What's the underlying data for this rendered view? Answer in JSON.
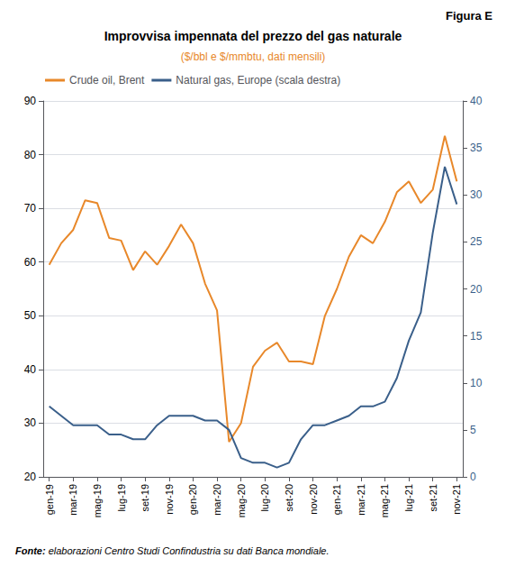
{
  "chart_data": {
    "type": "line",
    "title": "Improvvisa impennata del prezzo del gas naturale",
    "subtitle": "($/bbl e $/mmbtu, dati mensili)",
    "figure_label": "Figura E",
    "source_prefix": "Fonte:",
    "source": "elaborazioni Centro Studi Confindustria su dati Banca mondiale.",
    "subtitle_color": "#E8882A",
    "categories": [
      "gen-19",
      null,
      "mar-19",
      null,
      "mag-19",
      null,
      "lug-19",
      null,
      "set-19",
      null,
      "nov-19",
      null,
      "gen-20",
      null,
      "mar-20",
      null,
      "mag-20",
      null,
      "lug-20",
      null,
      "set-20",
      null,
      "nov-20",
      null,
      "gen-21",
      null,
      "mar-21",
      null,
      "mag-21",
      null,
      "lug-21",
      null,
      "set-21",
      null,
      "nov-21"
    ],
    "series": [
      {
        "name": "Crude oil, Brent",
        "color": "#E8882A",
        "axis": "y",
        "values": [
          59.5,
          63.5,
          66.0,
          71.5,
          71.0,
          64.5,
          64.0,
          58.5,
          62.0,
          59.5,
          63.0,
          67.0,
          63.5,
          56.0,
          51.0,
          26.5,
          30.0,
          40.5,
          43.5,
          45.0,
          41.5,
          41.5,
          41.0,
          50.0,
          55.0,
          61.0,
          65.0,
          63.5,
          67.5,
          73.0,
          75.0,
          71.0,
          73.5,
          83.5,
          75.0
        ]
      },
      {
        "name": "Natural gas, Europe (scala destra)",
        "color": "#3A5F8A",
        "axis": "y2",
        "values": [
          7.5,
          6.5,
          5.5,
          5.5,
          5.5,
          4.5,
          4.5,
          4.0,
          4.0,
          5.5,
          6.5,
          6.5,
          6.5,
          6.0,
          6.0,
          5.0,
          2.0,
          1.5,
          1.5,
          1.0,
          1.5,
          4.0,
          5.5,
          5.5,
          6.0,
          6.5,
          7.5,
          7.5,
          8.0,
          10.5,
          14.5,
          17.5,
          26.0,
          33.0,
          29.0
        ]
      }
    ],
    "ylim": [
      20,
      90
    ],
    "yticks": [
      20,
      30,
      40,
      50,
      60,
      70,
      80,
      90
    ],
    "y2lim": [
      0,
      40
    ],
    "y2ticks": [
      0,
      5,
      10,
      15,
      20,
      25,
      30,
      35,
      40
    ],
    "grid": true,
    "legend": "upper left"
  }
}
